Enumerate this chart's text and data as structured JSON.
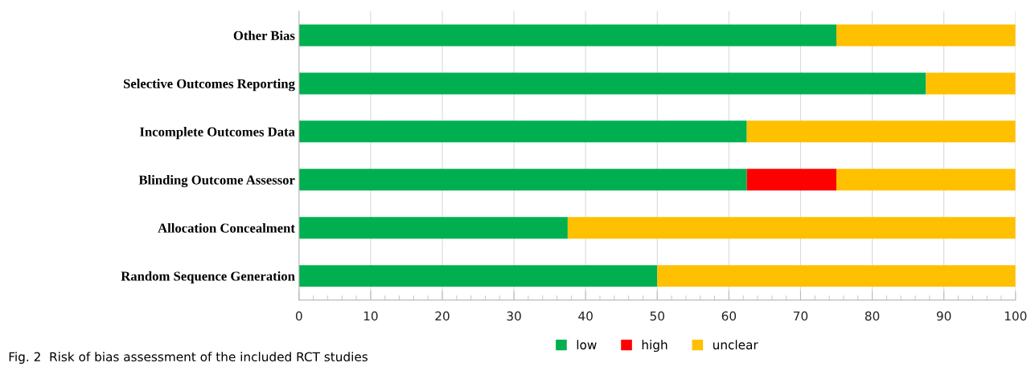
{
  "chart_data": {
    "type": "bar",
    "orientation": "horizontal",
    "stacked": true,
    "categories": [
      "Other Bias",
      "Selective Outcomes Reporting",
      "Incomplete Outcomes Data",
      "Blinding Outcome Assessor",
      "Allocation Concealment",
      "Random Sequence Generation"
    ],
    "series": [
      {
        "name": "low",
        "color": "#00b050",
        "values": [
          75,
          87.5,
          62.5,
          62.5,
          37.5,
          50
        ]
      },
      {
        "name": "high",
        "color": "#ff0000",
        "values": [
          0,
          0,
          0,
          12.5,
          0,
          0
        ]
      },
      {
        "name": "unclear",
        "color": "#ffc000",
        "values": [
          25,
          12.5,
          37.5,
          25,
          62.5,
          50
        ]
      }
    ],
    "xlim": [
      0,
      100
    ],
    "xticks": [
      0,
      10,
      20,
      30,
      40,
      50,
      60,
      70,
      80,
      90,
      100
    ],
    "grid": "x",
    "legend": "bottom",
    "annotations": [
      "Fig. 2  Risk of bias assessment of the included RCT studies"
    ]
  }
}
